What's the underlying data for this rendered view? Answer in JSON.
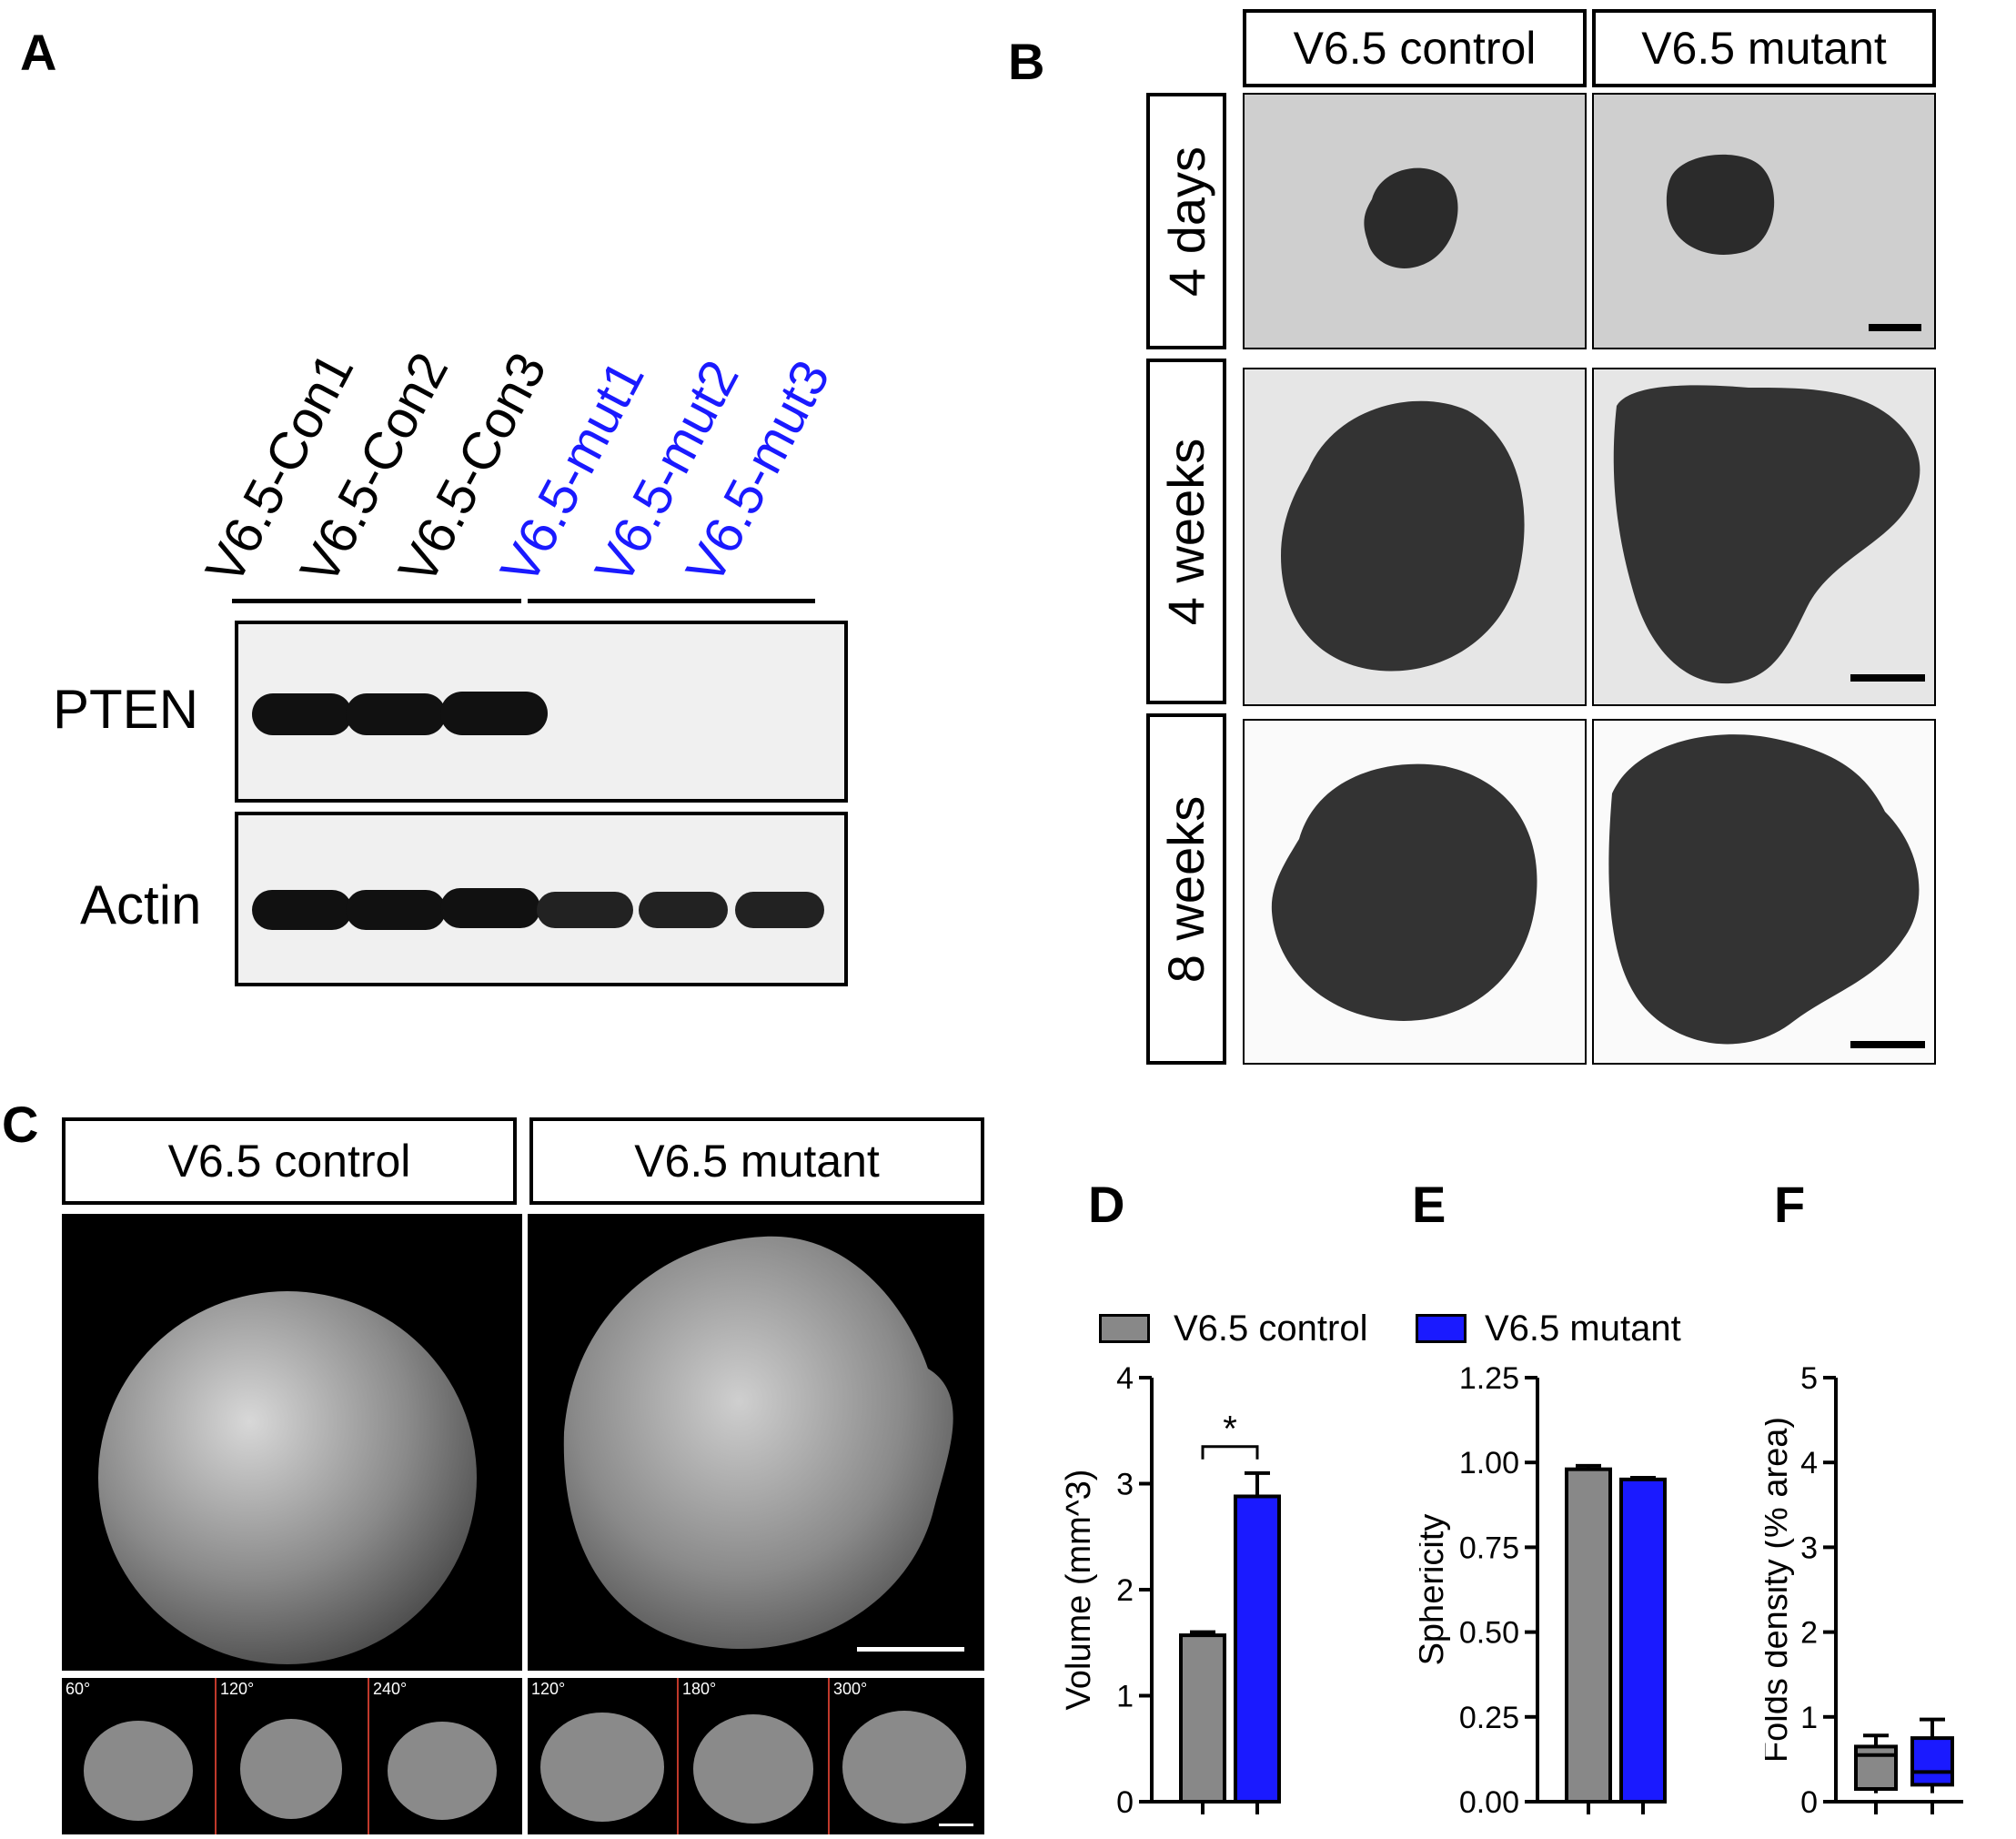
{
  "panels": {
    "A": "A",
    "B": "B",
    "C": "C",
    "D": "D",
    "E": "E",
    "F": "F"
  },
  "panelA": {
    "lanes": [
      {
        "label": "V6.5-Con1",
        "color": "#000000"
      },
      {
        "label": "V6.5-Con2",
        "color": "#000000"
      },
      {
        "label": "V6.5-Con3",
        "color": "#000000"
      },
      {
        "label": "V6.5-mut1",
        "color": "#1a1aff"
      },
      {
        "label": "V6.5-mut2",
        "color": "#1a1aff"
      },
      {
        "label": "V6.5-mut3",
        "color": "#1a1aff"
      }
    ],
    "rows": [
      "PTEN",
      "Actin"
    ]
  },
  "panelB": {
    "columns": [
      "V6.5 control",
      "V6.5 mutant"
    ],
    "rows": [
      "4 days",
      "4 weeks",
      "8 weeks"
    ]
  },
  "panelC": {
    "columns": [
      "V6.5 control",
      "V6.5 mutant"
    ],
    "angles_control": [
      "60°",
      "120°",
      "240°"
    ],
    "angles_mutant": [
      "120°",
      "180°",
      "300°"
    ]
  },
  "legend": [
    {
      "label": "V6.5 control",
      "color": "#888888"
    },
    {
      "label": "V6.5 mutant",
      "color": "#1a1aff"
    }
  ],
  "colors": {
    "control": "#888888",
    "mutant": "#1a1aff"
  },
  "chart_data": [
    {
      "type": "bar",
      "panel": "D",
      "ylabel": "Volume (mm^3)",
      "ylim": [
        0,
        4
      ],
      "yticks": [
        "0",
        "1",
        "2",
        "3",
        "4"
      ],
      "categories": [
        "V6.5 control",
        "V6.5 mutant"
      ],
      "values": [
        1.57,
        2.88
      ],
      "errors": [
        0.03,
        0.22
      ],
      "significance": "*"
    },
    {
      "type": "bar",
      "panel": "E",
      "ylabel": "Sphericity",
      "ylim": [
        0,
        1.25
      ],
      "yticks": [
        "0.00",
        "0.25",
        "0.50",
        "0.75",
        "1.00",
        "1.25"
      ],
      "categories": [
        "V6.5 control",
        "V6.5 mutant"
      ],
      "values": [
        0.98,
        0.95
      ],
      "errors": [
        0.01,
        0.005
      ]
    },
    {
      "type": "box",
      "panel": "F",
      "ylabel": "Folds density (% area)",
      "ylim": [
        0,
        5
      ],
      "yticks": [
        "0",
        "1",
        "2",
        "3",
        "4",
        "5"
      ],
      "categories": [
        "V6.5 control",
        "V6.5 mutant"
      ],
      "boxes": [
        {
          "min": 0.1,
          "q1": 0.15,
          "median": 0.55,
          "q3": 0.65,
          "max": 0.78
        },
        {
          "min": 0.1,
          "q1": 0.2,
          "median": 0.35,
          "q3": 0.75,
          "max": 0.97
        }
      ]
    }
  ]
}
